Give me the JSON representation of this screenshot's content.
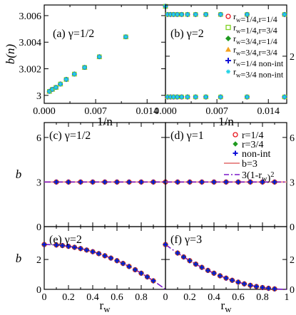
{
  "chart_data": [
    {
      "id": "a",
      "type": "scatter",
      "panel_label": "(a) γ=1/2",
      "xlabel": "1/n",
      "ylabel": "b(n)",
      "xlim": [
        0,
        0.0165
      ],
      "ylim": [
        2.9994,
        3.0068
      ],
      "xticks": [
        "0.000",
        "0.007",
        "0.014"
      ],
      "xtick_values": [
        0,
        0.007,
        0.014
      ],
      "yticks": [
        "3",
        "3.002",
        "3.004",
        "3.006"
      ],
      "ytick_values": [
        3,
        3.002,
        3.004,
        3.006
      ],
      "series": [
        {
          "key": "s1",
          "x": [
            0.0007,
            0.0011,
            0.0016,
            0.0022,
            0.003,
            0.0041,
            0.0055,
            0.0075,
            0.0111,
            0.0165
          ],
          "y": [
            3.0003,
            3.00045,
            3.0006,
            3.00085,
            3.0012,
            3.0016,
            3.0021,
            3.0029,
            3.0044,
            3.0067
          ]
        }
      ]
    },
    {
      "id": "b",
      "type": "scatter",
      "panel_label": "(b) γ=2",
      "xlabel": "1/n",
      "ylabel": "",
      "xlim": [
        0,
        0.0165
      ],
      "ylim": [
        1.08,
        3.0
      ],
      "xticks": [
        "0.000",
        "0.007",
        "0.014"
      ],
      "xtick_values": [
        0,
        0.007,
        0.014
      ],
      "yticks": [
        "2"
      ],
      "ytick_values": [
        2
      ],
      "legend": [
        {
          "key": "s1",
          "label": "r_w=1/4,r=1/4"
        },
        {
          "key": "s2",
          "label": "r_w=1/4,r=3/4"
        },
        {
          "key": "s3",
          "label": "r_w=3/4,r=1/4"
        },
        {
          "key": "s4",
          "label": "r_w=3/4,r=3/4"
        },
        {
          "key": "s5",
          "label": "r_w=1/4 non-int"
        },
        {
          "key": "s6",
          "label": "r_w=3/4 non-int"
        }
      ],
      "x": [
        0.0003,
        0.0007,
        0.0011,
        0.0016,
        0.0022,
        0.003,
        0.0041,
        0.0055,
        0.0075,
        0.0111,
        0.0162
      ],
      "upper_y": 2.815,
      "lower_y": 1.205
    },
    {
      "id": "c",
      "type": "scatter",
      "panel_label": "(c) γ=1/2",
      "xlabel": "",
      "ylabel": "b",
      "xlim": [
        0,
        1
      ],
      "ylim": [
        0,
        7
      ],
      "yticks": [
        "0",
        "3",
        "6"
      ],
      "ytick_values": [
        0,
        3,
        6
      ],
      "x": [
        0.1,
        0.2,
        0.3,
        0.4,
        0.5,
        0.6,
        0.7,
        0.8,
        0.9,
        1.0
      ],
      "y": 3
    },
    {
      "id": "d",
      "type": "scatter",
      "panel_label": "(d) γ=1",
      "xlim": [
        0,
        1
      ],
      "ylim": [
        0,
        7
      ],
      "yticks": [
        "0",
        "3",
        "6"
      ],
      "ytick_values": [
        0,
        3,
        6
      ],
      "x": [
        0.1,
        0.2,
        0.3,
        0.4,
        0.5,
        0.6,
        0.7,
        0.8,
        0.9
      ],
      "y": 3,
      "legend": [
        {
          "key": "r14",
          "label": "r=1/4"
        },
        {
          "key": "r34",
          "label": "r=3/4"
        },
        {
          "key": "nonint",
          "label": "non-int"
        },
        {
          "key": "b3",
          "label": "b=3"
        },
        {
          "key": "curve",
          "label": "3(1-r_w)^2"
        }
      ]
    },
    {
      "id": "e",
      "type": "scatter",
      "panel_label": "(e) γ=2",
      "xlabel": "r_w",
      "ylabel": "b",
      "xlim": [
        0,
        1
      ],
      "ylim": [
        0,
        4.2
      ],
      "yticks": [
        "0",
        "2"
      ],
      "ytick_values": [
        0,
        2
      ],
      "xticks": [
        "0",
        "0.2",
        "0.4",
        "0.6",
        "0.8"
      ],
      "xtick_values": [
        0,
        0.2,
        0.4,
        0.6,
        0.8
      ],
      "x": [
        0.0,
        0.1,
        0.15,
        0.2,
        0.25,
        0.3,
        0.35,
        0.4,
        0.45,
        0.5,
        0.55,
        0.6,
        0.65,
        0.7,
        0.75,
        0.8,
        0.85,
        0.9
      ],
      "y_formula": "3(1-r_w^2)"
    },
    {
      "id": "f",
      "type": "scatter",
      "panel_label": "(f) γ=3",
      "xlabel": "r_w",
      "xlim": [
        0,
        1
      ],
      "ylim": [
        0,
        4.2
      ],
      "yticks": [
        "0",
        "2"
      ],
      "ytick_values": [
        0,
        2
      ],
      "xticks": [
        "0",
        "0.2",
        "0.4",
        "0.6",
        "0.8",
        "1"
      ],
      "xtick_values": [
        0,
        0.2,
        0.4,
        0.6,
        0.8,
        1
      ],
      "x": [
        0.0,
        0.1,
        0.15,
        0.2,
        0.25,
        0.3,
        0.35,
        0.4,
        0.45,
        0.5,
        0.55,
        0.6,
        0.65,
        0.7,
        0.75,
        0.8,
        0.85,
        0.9
      ],
      "y_formula": "3(1-r_w)^2"
    }
  ],
  "colors": {
    "red": "#e8141c",
    "green": "#1f9a1f",
    "blue": "#1010d8",
    "orange": "#f5a21c",
    "lime": "#7ed321",
    "cyan": "#23d3e6",
    "pink": "#e98f8f",
    "purple": "#7c16c8"
  }
}
